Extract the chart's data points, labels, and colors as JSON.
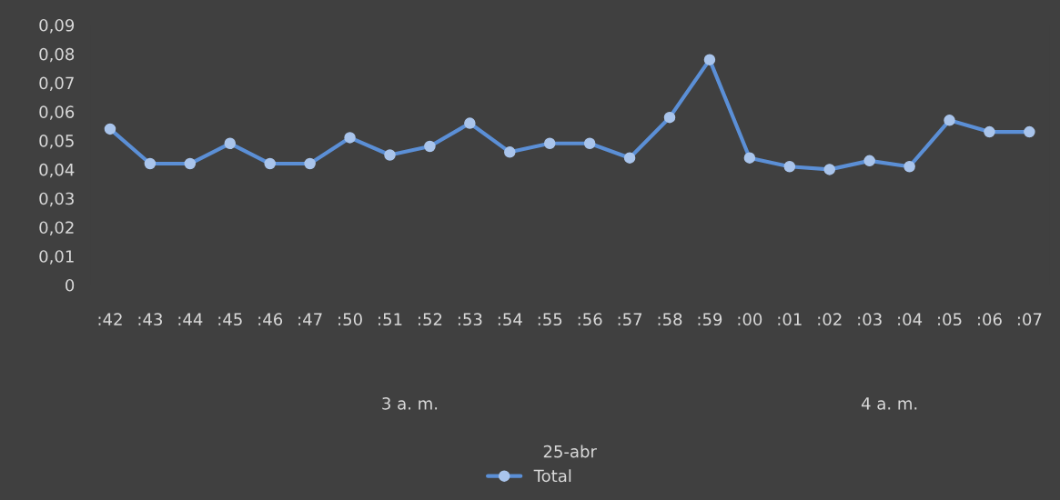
{
  "chart_data": {
    "type": "line",
    "categories": [
      ":42",
      ":43",
      ":44",
      ":45",
      ":46",
      ":47",
      ":50",
      ":51",
      ":52",
      ":53",
      ":54",
      ":55",
      ":56",
      ":57",
      ":58",
      ":59",
      ":00",
      ":01",
      ":02",
      ":03",
      ":04",
      ":05",
      ":06",
      ":07"
    ],
    "series": [
      {
        "name": "Total",
        "color": "#5b8fd6",
        "values": [
          0.054,
          0.042,
          0.042,
          0.049,
          0.042,
          0.042,
          0.051,
          0.045,
          0.048,
          0.056,
          0.046,
          0.049,
          0.049,
          0.044,
          0.058,
          0.078,
          0.044,
          0.041,
          0.04,
          0.043,
          0.041,
          0.057,
          0.053,
          0.053
        ]
      }
    ],
    "annotations": [
      "3 a. m.",
      "4 a. m.",
      "25-abr"
    ],
    "ylim": [
      0,
      0.09
    ],
    "yticks": [
      {
        "value": 0,
        "label": "0"
      },
      {
        "value": 0.01,
        "label": "0,01"
      },
      {
        "value": 0.02,
        "label": "0,02"
      },
      {
        "value": 0.03,
        "label": "0,03"
      },
      {
        "value": 0.04,
        "label": "0,04"
      },
      {
        "value": 0.05,
        "label": "0,05"
      },
      {
        "value": 0.06,
        "label": "0,06"
      },
      {
        "value": 0.07,
        "label": "0,07"
      },
      {
        "value": 0.08,
        "label": "0,08"
      },
      {
        "value": 0.09,
        "label": "0,09"
      }
    ],
    "marker": "circle",
    "line_style": "solid",
    "grid": false,
    "legend": "bottom"
  }
}
